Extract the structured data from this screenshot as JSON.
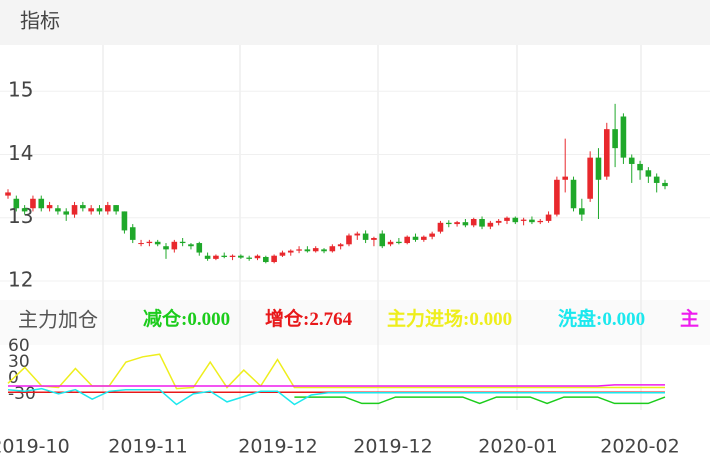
{
  "header": {
    "title": "指标"
  },
  "chart_data": [
    {
      "type": "candlestick",
      "up_color": "#e8282d",
      "down_color": "#1fa82a",
      "ylim": [
        11.7,
        15.73
      ],
      "yticks": [
        12,
        13,
        14,
        15
      ],
      "xlabels": [
        "2019-10",
        "2019-11",
        "2019-12",
        "2019-12",
        "2020-01",
        "2020-02"
      ],
      "candles": [
        [
          13.35,
          13.45,
          13.3,
          13.4
        ],
        [
          13.3,
          13.35,
          13.1,
          13.15
        ],
        [
          13.15,
          13.2,
          13.05,
          13.1
        ],
        [
          13.15,
          13.35,
          13.1,
          13.3
        ],
        [
          13.3,
          13.35,
          13.1,
          13.15
        ],
        [
          13.15,
          13.25,
          13.1,
          13.2
        ],
        [
          13.15,
          13.2,
          13.05,
          13.1
        ],
        [
          13.1,
          13.15,
          12.95,
          13.05
        ],
        [
          13.05,
          13.25,
          13.0,
          13.2
        ],
        [
          13.2,
          13.25,
          13.1,
          13.15
        ],
        [
          13.1,
          13.2,
          13.05,
          13.15
        ],
        [
          13.15,
          13.2,
          13.05,
          13.1
        ],
        [
          13.1,
          13.25,
          13.05,
          13.2
        ],
        [
          13.2,
          13.2,
          13.05,
          13.1
        ],
        [
          13.1,
          13.1,
          12.75,
          12.8
        ],
        [
          12.85,
          12.9,
          12.6,
          12.65
        ],
        [
          12.6,
          12.65,
          12.55,
          12.6
        ],
        [
          12.6,
          12.65,
          12.55,
          12.62
        ],
        [
          12.62,
          12.65,
          12.55,
          12.58
        ],
        [
          12.55,
          12.6,
          12.35,
          12.5
        ],
        [
          12.5,
          12.65,
          12.45,
          12.62
        ],
        [
          12.62,
          12.68,
          12.55,
          12.6
        ],
        [
          12.58,
          12.6,
          12.5,
          12.55
        ],
        [
          12.6,
          12.62,
          12.4,
          12.45
        ],
        [
          12.4,
          12.45,
          12.32,
          12.35
        ],
        [
          12.35,
          12.42,
          12.33,
          12.4
        ],
        [
          12.4,
          12.45,
          12.36,
          12.38
        ],
        [
          12.38,
          12.42,
          12.33,
          12.4
        ],
        [
          12.4,
          12.42,
          12.35,
          12.37
        ],
        [
          12.37,
          12.4,
          12.32,
          12.35
        ],
        [
          12.36,
          12.42,
          12.33,
          12.4
        ],
        [
          12.38,
          12.4,
          12.28,
          12.3
        ],
        [
          12.3,
          12.42,
          12.28,
          12.4
        ],
        [
          12.4,
          12.48,
          12.38,
          12.45
        ],
        [
          12.45,
          12.5,
          12.4,
          12.48
        ],
        [
          12.48,
          12.55,
          12.44,
          12.5
        ],
        [
          12.5,
          12.55,
          12.45,
          12.47
        ],
        [
          12.47,
          12.55,
          12.45,
          12.52
        ],
        [
          12.5,
          12.52,
          12.44,
          12.47
        ],
        [
          12.47,
          12.58,
          12.45,
          12.55
        ],
        [
          12.55,
          12.6,
          12.5,
          12.58
        ],
        [
          12.58,
          12.75,
          12.55,
          12.72
        ],
        [
          12.72,
          12.78,
          12.65,
          12.75
        ],
        [
          12.75,
          12.8,
          12.6,
          12.65
        ],
        [
          12.65,
          12.7,
          12.55,
          12.68
        ],
        [
          12.75,
          12.8,
          12.52,
          12.55
        ],
        [
          12.58,
          12.65,
          12.55,
          12.62
        ],
        [
          12.62,
          12.68,
          12.58,
          12.6
        ],
        [
          12.6,
          12.72,
          12.58,
          12.7
        ],
        [
          12.7,
          12.75,
          12.62,
          12.65
        ],
        [
          12.65,
          12.72,
          12.62,
          12.7
        ],
        [
          12.7,
          12.78,
          12.66,
          12.75
        ],
        [
          12.78,
          12.95,
          12.75,
          12.92
        ],
        [
          12.92,
          12.96,
          12.85,
          12.9
        ],
        [
          12.9,
          12.95,
          12.86,
          12.93
        ],
        [
          12.93,
          12.98,
          12.85,
          12.88
        ],
        [
          12.88,
          13.0,
          12.85,
          12.98
        ],
        [
          12.98,
          13.02,
          12.82,
          12.86
        ],
        [
          12.86,
          12.95,
          12.82,
          12.92
        ],
        [
          12.92,
          12.98,
          12.88,
          12.95
        ],
        [
          12.95,
          13.02,
          12.9,
          13.0
        ],
        [
          13.0,
          13.02,
          12.9,
          12.93
        ],
        [
          12.95,
          13.0,
          12.88,
          12.97
        ],
        [
          12.97,
          13.02,
          12.9,
          12.93
        ],
        [
          12.93,
          12.98,
          12.9,
          12.95
        ],
        [
          12.95,
          13.1,
          12.92,
          13.05
        ],
        [
          13.05,
          13.65,
          13.02,
          13.6
        ],
        [
          13.6,
          14.25,
          13.4,
          13.65
        ],
        [
          13.6,
          13.65,
          13.1,
          13.15
        ],
        [
          13.15,
          13.3,
          12.95,
          13.05
        ],
        [
          13.3,
          14.05,
          13.25,
          13.95
        ],
        [
          13.95,
          14.1,
          12.98,
          13.6
        ],
        [
          13.65,
          14.5,
          13.6,
          14.4
        ],
        [
          14.4,
          14.8,
          13.8,
          14.1
        ],
        [
          14.6,
          14.65,
          13.85,
          13.95
        ],
        [
          13.95,
          14.0,
          13.55,
          13.85
        ],
        [
          13.85,
          13.9,
          13.6,
          13.75
        ],
        [
          13.75,
          13.8,
          13.55,
          13.65
        ],
        [
          13.65,
          13.7,
          13.4,
          13.55
        ],
        [
          13.55,
          13.6,
          13.45,
          13.5
        ]
      ]
    },
    {
      "type": "line",
      "title": "主力加仓",
      "ylim": [
        -56.6,
        71.7
      ],
      "yticks": [
        60,
        30,
        0,
        -30
      ],
      "series": [
        {
          "name": "减仓:",
          "color": "#1ccc1c",
          "value": 0,
          "value_label": "0.000",
          "values": [
            null,
            null,
            null,
            null,
            null,
            null,
            null,
            null,
            null,
            null,
            null,
            null,
            null,
            null,
            null,
            null,
            null,
            -36,
            -36,
            -36,
            -36,
            -48,
            -48,
            -36,
            -36,
            -36,
            -36,
            -36,
            -48,
            -36,
            -36,
            -36,
            -48,
            -36,
            -36,
            -36,
            -48,
            -48,
            -48,
            -36
          ]
        },
        {
          "name": "增仓:",
          "color": "#e8181a",
          "value": 2.764,
          "value_label": "2.764",
          "values": [
            -27,
            -27,
            -27,
            -27,
            -27,
            -27,
            -27,
            -27,
            -27,
            -27,
            -27,
            -27,
            -27,
            -27,
            -27,
            -27,
            -27,
            -27,
            -27,
            -27,
            -27,
            -27,
            -27,
            -27,
            -27,
            -27,
            -27,
            -27,
            -27,
            -27,
            -27,
            -27,
            -27,
            -27,
            -27,
            -27,
            -27,
            -27,
            -27,
            -27
          ]
        },
        {
          "name": "主力进场:",
          "color": "#eeee1c",
          "value": 0,
          "value_label": "0.000",
          "values": [
            -10,
            20,
            -15,
            -18,
            18,
            -15,
            -15,
            30,
            40,
            45,
            -20,
            -18,
            30,
            -18,
            15,
            -15,
            35,
            -18,
            -18,
            -18,
            -18,
            -18,
            -18,
            -18,
            -18,
            -18,
            -18,
            -18,
            -18,
            -18,
            -18,
            -18,
            -18,
            -18,
            -18,
            -18,
            -18,
            -18,
            -18,
            -18
          ]
        },
        {
          "name": "洗盘:",
          "color": "#1ce8ee",
          "value": 0,
          "value_label": "0.000",
          "values": [
            -22,
            -25,
            -20,
            -30,
            -22,
            -40,
            -25,
            -22,
            -22,
            -22,
            -50,
            -30,
            -25,
            -45,
            -35,
            -25,
            -25,
            -50,
            -32,
            -28,
            -28,
            -28,
            -28,
            -28,
            -28,
            -28,
            -28,
            -28,
            -28,
            -28,
            -28,
            -28,
            -28,
            -28,
            -28,
            -28,
            -28,
            -28,
            -28,
            -28
          ]
        },
        {
          "name": "主",
          "color": "#ee1cee",
          "values": [
            -15,
            -15,
            -15,
            -15,
            -15,
            -15,
            -15,
            -15,
            -15,
            -15,
            -15,
            -15,
            -15,
            -15,
            -15,
            -15,
            -15,
            -15,
            -15,
            -15,
            -15,
            -15,
            -15,
            -15,
            -15,
            -15,
            -15,
            -15,
            -15,
            -15,
            -15,
            -15,
            -15,
            -15,
            -15,
            -15,
            -13,
            -13,
            -13,
            -13
          ]
        }
      ]
    }
  ]
}
